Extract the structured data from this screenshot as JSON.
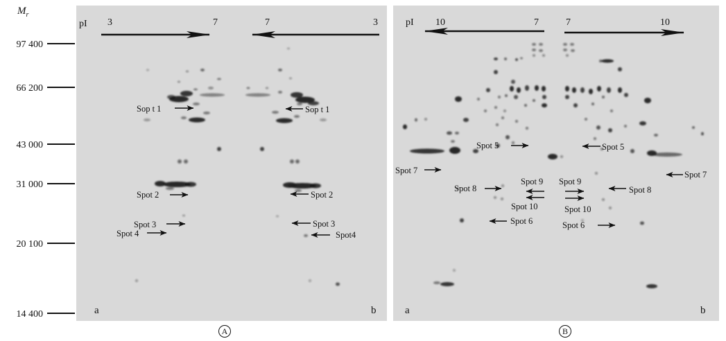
{
  "colors": {
    "gel_background": "#d9d9d9",
    "ink": "#111111",
    "page_background": "#ffffff"
  },
  "y_axis": {
    "label": "M",
    "label_subscript": "r",
    "ticks": [
      "97 400",
      "66 200",
      "43 000",
      "31 000",
      "20 100",
      "14 400"
    ]
  },
  "panel_A": {
    "caption": "A",
    "pI_label": "pI",
    "pI_scale": {
      "gel_a_start": "3",
      "gel_a_end": "7",
      "gel_b_start": "7",
      "gel_b_end": "3"
    },
    "gel_labels": {
      "gel_a": "a",
      "gel_b": "b"
    },
    "gel_a_spots": [
      "Sop t 1",
      "Spot 2",
      "Spot 3",
      "Spot 4"
    ],
    "gel_b_spots": [
      "Sop t 1",
      "Spot 2",
      "Spot 3",
      "Spot4"
    ]
  },
  "panel_B": {
    "caption": "B",
    "pI_label": "pI",
    "pI_scale": {
      "gel_a_start": "10",
      "gel_a_end": "7",
      "gel_b_start": "7",
      "gel_b_end": "10"
    },
    "gel_labels": {
      "gel_a": "a",
      "gel_b": "b"
    },
    "gel_a_spots": [
      "Spot 5",
      "Spot 7",
      "Spot 8",
      "Spot 9",
      "Spot 10",
      "Spot 6"
    ],
    "gel_b_spots": [
      "Spot 5",
      "Spot 7",
      "Spot 8",
      "Spot 9",
      "Spot 10",
      "Spot 6"
    ]
  }
}
